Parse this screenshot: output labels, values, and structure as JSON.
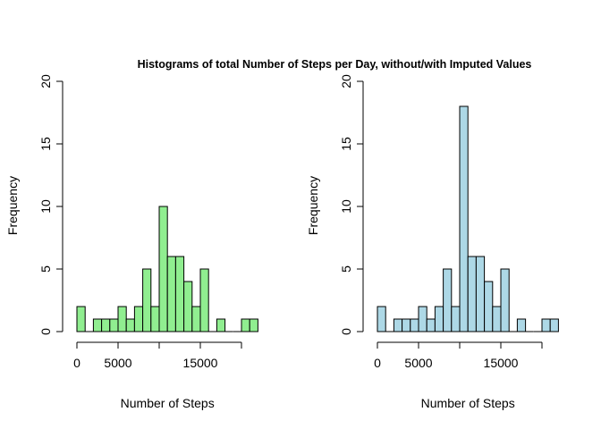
{
  "figure": {
    "title": "Histograms of total Number of Steps per Day, without/with Imputed Values"
  },
  "chart_data": [
    {
      "type": "bar",
      "title": "",
      "xlabel": "Number of Steps",
      "ylabel": "Frequency",
      "color": "#90ee90",
      "bin_width": 1000,
      "bin_start": 0,
      "values": [
        2,
        0,
        1,
        1,
        1,
        2,
        1,
        2,
        5,
        2,
        10,
        6,
        6,
        4,
        2,
        5,
        0,
        1,
        0,
        0,
        1,
        1
      ],
      "xlim": [
        0,
        22000
      ],
      "ylim": [
        0,
        20
      ],
      "x_ticks": [
        0,
        5000,
        10000,
        15000,
        20000
      ],
      "x_tick_labels": [
        "0",
        "5000",
        "",
        "15000",
        ""
      ],
      "y_ticks": [
        0,
        5,
        10,
        15,
        20
      ],
      "y_tick_labels": [
        "0",
        "5",
        "10",
        "15",
        "20"
      ],
      "grid": false
    },
    {
      "type": "bar",
      "title": "",
      "xlabel": "Number of Steps",
      "ylabel": "Frequency",
      "color": "#add8e6",
      "bin_width": 1000,
      "bin_start": 0,
      "values": [
        2,
        0,
        1,
        1,
        1,
        2,
        1,
        2,
        5,
        2,
        18,
        6,
        6,
        4,
        2,
        5,
        0,
        1,
        0,
        0,
        1,
        1
      ],
      "xlim": [
        0,
        22000
      ],
      "ylim": [
        0,
        20
      ],
      "x_ticks": [
        0,
        5000,
        10000,
        15000,
        20000
      ],
      "x_tick_labels": [
        "0",
        "5000",
        "",
        "15000",
        ""
      ],
      "y_ticks": [
        0,
        5,
        10,
        15,
        20
      ],
      "y_tick_labels": [
        "0",
        "5",
        "10",
        "15",
        "20"
      ],
      "grid": false
    }
  ]
}
